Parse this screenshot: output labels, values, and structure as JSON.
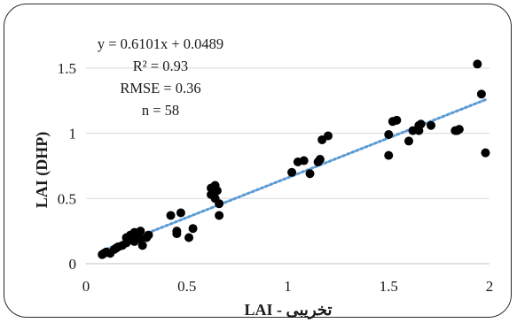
{
  "chart_data": {
    "type": "scatter",
    "xlabel": "تخریبی -  LAI",
    "ylabel": "LAI (DHP)",
    "xlim": [
      0,
      2
    ],
    "ylim": [
      0,
      1.75
    ],
    "x_ticks": [
      "0",
      "0.5",
      "1",
      "1.5",
      "2"
    ],
    "y_ticks": [
      "0",
      "0.5",
      "1",
      "1.5"
    ],
    "grid": {
      "horizontal": true,
      "vertical": false
    },
    "annotations": [
      "y = 0.6101x + 0.0489",
      "R² = 0.93",
      "RMSE = 0.36",
      "n = 58"
    ],
    "trendline": {
      "slope": 0.6101,
      "intercept": 0.0489,
      "style": "dotted",
      "color": "#5b9bd5"
    },
    "point_color": "#000000",
    "points": [
      [
        0.08,
        0.07
      ],
      [
        0.1,
        0.09
      ],
      [
        0.12,
        0.08
      ],
      [
        0.14,
        0.11
      ],
      [
        0.15,
        0.12
      ],
      [
        0.18,
        0.14
      ],
      [
        0.2,
        0.16
      ],
      [
        0.21,
        0.18
      ],
      [
        0.22,
        0.22
      ],
      [
        0.24,
        0.24
      ],
      [
        0.24,
        0.17
      ],
      [
        0.25,
        0.2
      ],
      [
        0.27,
        0.25
      ],
      [
        0.27,
        0.19
      ],
      [
        0.28,
        0.14
      ],
      [
        0.3,
        0.2
      ],
      [
        0.31,
        0.22
      ],
      [
        0.42,
        0.37
      ],
      [
        0.45,
        0.25
      ],
      [
        0.45,
        0.23
      ],
      [
        0.47,
        0.39
      ],
      [
        0.51,
        0.2
      ],
      [
        0.53,
        0.27
      ],
      [
        0.62,
        0.58
      ],
      [
        0.62,
        0.53
      ],
      [
        0.63,
        0.55
      ],
      [
        0.64,
        0.5
      ],
      [
        0.65,
        0.56
      ],
      [
        0.66,
        0.46
      ],
      [
        0.66,
        0.37
      ],
      [
        1.02,
        0.7
      ],
      [
        1.05,
        0.78
      ],
      [
        1.08,
        0.79
      ],
      [
        1.11,
        0.69
      ],
      [
        1.15,
        0.78
      ],
      [
        1.16,
        0.8
      ],
      [
        1.17,
        0.95
      ],
      [
        1.2,
        0.98
      ],
      [
        1.5,
        0.99
      ],
      [
        1.5,
        0.83
      ],
      [
        1.52,
        1.09
      ],
      [
        1.54,
        1.1
      ],
      [
        1.6,
        0.94
      ],
      [
        1.62,
        1.02
      ],
      [
        1.65,
        1.06
      ],
      [
        1.65,
        1.02
      ],
      [
        1.66,
        1.07
      ],
      [
        1.71,
        1.06
      ],
      [
        1.83,
        1.02
      ],
      [
        1.84,
        1.02
      ],
      [
        1.85,
        1.03
      ],
      [
        1.94,
        1.53
      ],
      [
        1.96,
        1.3
      ],
      [
        1.98,
        0.85
      ],
      [
        0.09,
        0.08
      ],
      [
        0.16,
        0.13
      ],
      [
        0.2,
        0.2
      ],
      [
        0.64,
        0.6
      ]
    ]
  }
}
